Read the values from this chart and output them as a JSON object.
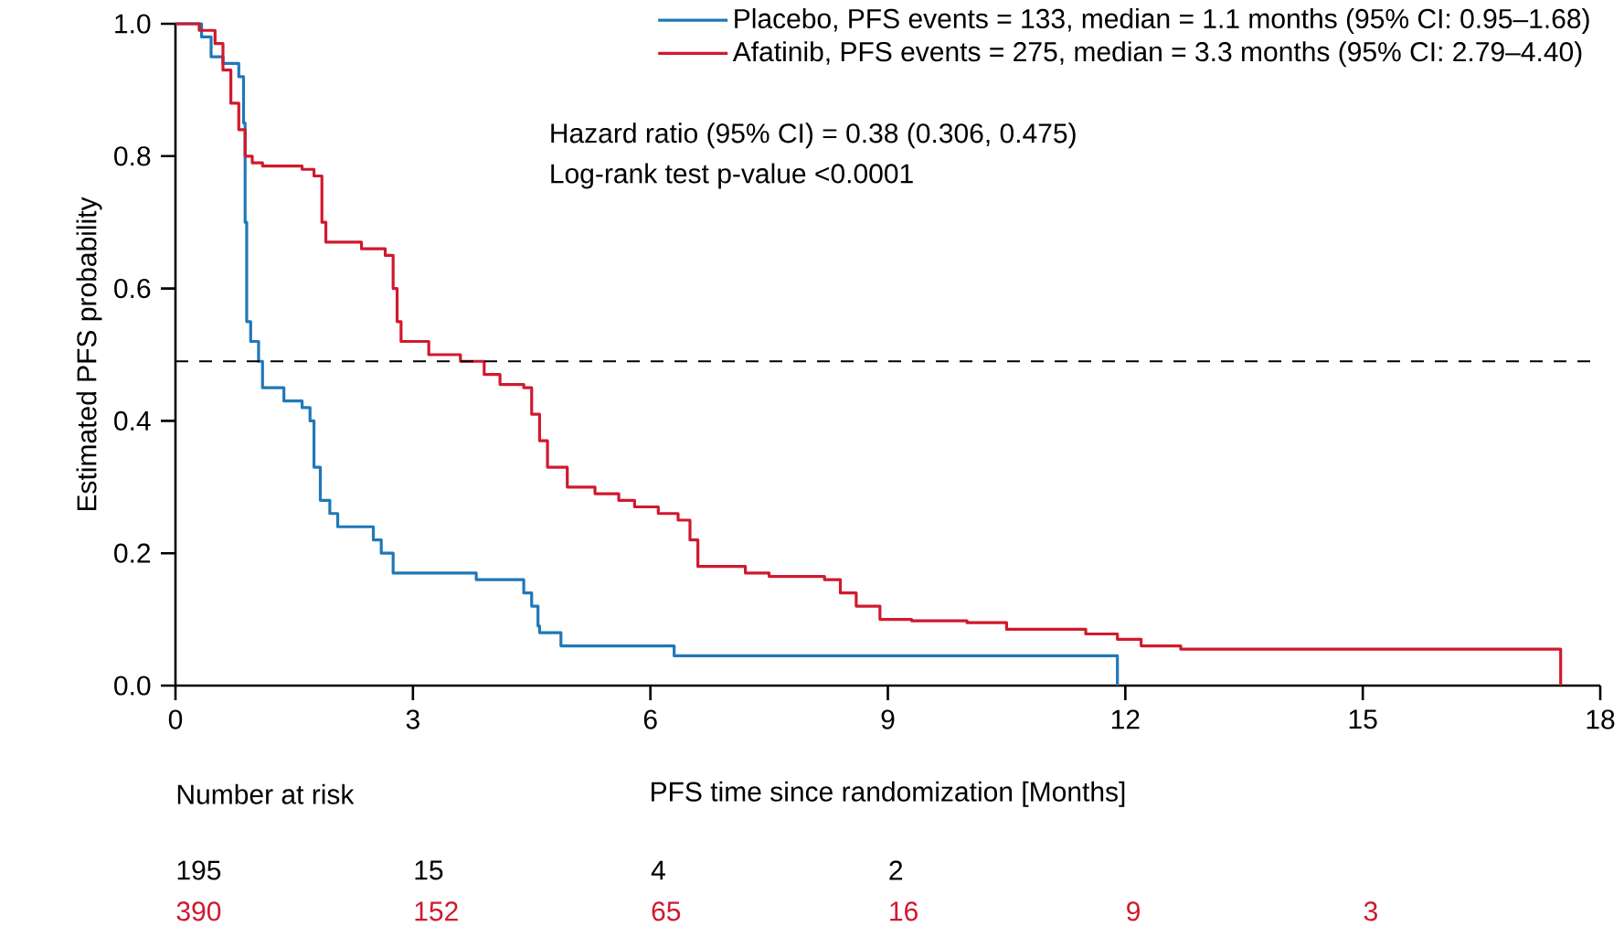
{
  "chart_data": {
    "type": "step",
    "xlabel": "PFS time since randomization [Months]",
    "ylabel": "Estimated PFS probability",
    "xlim": [
      0,
      18
    ],
    "ylim": [
      0,
      1
    ],
    "xticks": [
      0,
      3,
      6,
      9,
      12,
      15,
      18
    ],
    "yticks": [
      {
        "value": 0,
        "label": "0.0"
      },
      0.2,
      0.4,
      0.6,
      0.8,
      {
        "value": 1,
        "label": "1.0"
      }
    ],
    "grid": false,
    "legend": "top right",
    "marker": "none",
    "series": [
      {
        "name": "Placebo, PFS events = 133, median = 1.1 months (95% CI: 0.95–1.68)",
        "color": "#1f78b8",
        "x": [
          0,
          0.33,
          0.45,
          0.6,
          0.8,
          0.86,
          0.88,
          0.9,
          0.95,
          1.05,
          1.1,
          1.37,
          1.6,
          1.7,
          1.75,
          1.83,
          1.95,
          2.05,
          2.5,
          2.6,
          2.75,
          3.8,
          4.4,
          4.5,
          4.58,
          4.6,
          4.87,
          6.3,
          11.9,
          11.9
        ],
        "values": [
          1,
          0.98,
          0.95,
          0.94,
          0.92,
          0.85,
          0.7,
          0.55,
          0.52,
          0.49,
          0.45,
          0.43,
          0.42,
          0.4,
          0.33,
          0.28,
          0.26,
          0.24,
          0.22,
          0.2,
          0.17,
          0.16,
          0.14,
          0.12,
          0.09,
          0.08,
          0.06,
          0.045,
          0.045,
          0
        ]
      },
      {
        "name": "Afatinib, PFS events = 275, median = 3.3 months (95% CI: 2.79–4.40)",
        "color": "#d0192e",
        "x": [
          0,
          0.3,
          0.5,
          0.6,
          0.7,
          0.8,
          0.88,
          0.97,
          1.1,
          1.6,
          1.75,
          1.85,
          1.9,
          2.35,
          2.65,
          2.75,
          2.8,
          2.85,
          3.2,
          3.6,
          3.9,
          4.1,
          4.4,
          4.5,
          4.6,
          4.7,
          4.95,
          5.3,
          5.6,
          5.8,
          6.1,
          6.35,
          6.5,
          6.6,
          7.2,
          7.5,
          8.2,
          8.4,
          8.6,
          8.9,
          9.3,
          10.0,
          10.5,
          11.5,
          11.9,
          12.2,
          12.7,
          17.5,
          17.5
        ],
        "values": [
          1,
          0.99,
          0.97,
          0.93,
          0.88,
          0.84,
          0.8,
          0.79,
          0.785,
          0.78,
          0.77,
          0.7,
          0.67,
          0.66,
          0.65,
          0.6,
          0.55,
          0.52,
          0.5,
          0.49,
          0.47,
          0.455,
          0.45,
          0.41,
          0.37,
          0.33,
          0.3,
          0.29,
          0.28,
          0.27,
          0.26,
          0.25,
          0.22,
          0.18,
          0.17,
          0.165,
          0.16,
          0.14,
          0.12,
          0.1,
          0.098,
          0.095,
          0.085,
          0.078,
          0.07,
          0.06,
          0.055,
          0.055,
          0
        ]
      }
    ],
    "ref_lines": [
      {
        "axis": "y",
        "value": 0.49,
        "color": "#000000",
        "line_style": "dashed"
      }
    ],
    "annotations": [
      "Hazard ratio (95% CI) = 0.38 (0.306, 0.475)",
      "Log-rank test p-value <0.0001",
      "Number at risk",
      "195",
      "15",
      "4",
      "2",
      "390",
      "152",
      "65",
      "16",
      "9",
      "3"
    ]
  }
}
